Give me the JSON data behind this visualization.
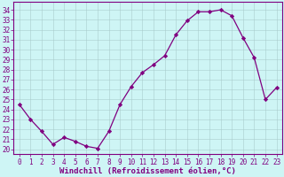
{
  "x": [
    0,
    1,
    2,
    3,
    4,
    5,
    6,
    7,
    8,
    9,
    10,
    11,
    12,
    13,
    14,
    15,
    16,
    17,
    18,
    19,
    20,
    21,
    22,
    23
  ],
  "y": [
    24.5,
    23.0,
    21.8,
    20.5,
    21.2,
    20.8,
    20.3,
    20.1,
    21.8,
    24.5,
    26.3,
    27.7,
    28.5,
    29.4,
    31.5,
    32.9,
    33.8,
    33.8,
    34.0,
    33.4,
    31.2,
    29.2,
    25.0,
    26.2
  ],
  "line_color": "#800080",
  "marker": "D",
  "marker_size": 2.2,
  "bg_color": "#cef5f5",
  "grid_color": "#aacccc",
  "xlabel": "Windchill (Refroidissement éolien,°C)",
  "ylabel_ticks": [
    20,
    21,
    22,
    23,
    24,
    25,
    26,
    27,
    28,
    29,
    30,
    31,
    32,
    33,
    34
  ],
  "ylim": [
    19.5,
    34.8
  ],
  "xlim": [
    -0.5,
    23.5
  ],
  "tick_label_color": "#800080",
  "axis_color": "#800080",
  "tick_fontsize": 5.5,
  "xlabel_fontsize": 6.5,
  "linewidth": 0.9
}
